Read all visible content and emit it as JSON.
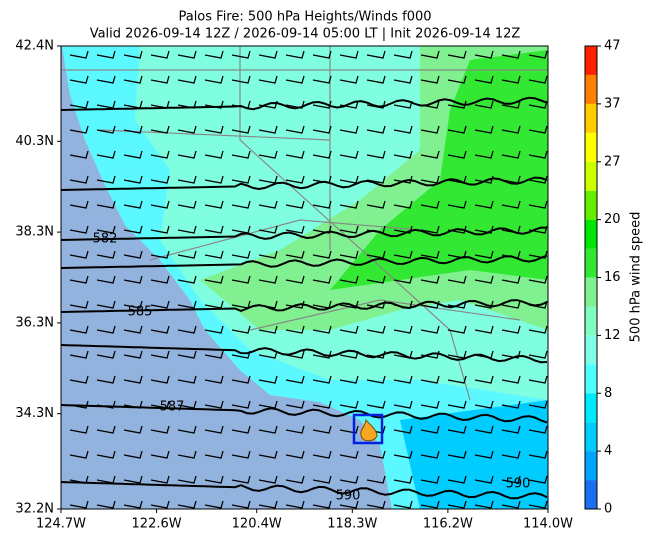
{
  "chart_data": {
    "type": "map",
    "title": "Palos Fire: 500 hPa Heights/Winds f000",
    "subtitle": "Valid 2026-09-14 12Z / 2026-09-14 05:00 LT | Init 2026-09-14 12Z",
    "xlim": [
      -124.7,
      -114.0
    ],
    "xticks": [
      {
        "value": -124.7,
        "label": "124.7W"
      },
      {
        "value": -122.6,
        "label": "122.6W"
      },
      {
        "value": -120.4,
        "label": "120.4W"
      },
      {
        "value": -118.3,
        "label": "118.3W"
      },
      {
        "value": -116.2,
        "label": "116.2W"
      },
      {
        "value": -114.0,
        "label": "114.0W"
      }
    ],
    "ylim": [
      32.2,
      42.4
    ],
    "yticks": [
      {
        "value": 32.2,
        "label": "32.2N"
      },
      {
        "value": 34.3,
        "label": "34.3N"
      },
      {
        "value": 36.3,
        "label": "36.3N"
      },
      {
        "value": 38.3,
        "label": "38.3N"
      },
      {
        "value": 40.3,
        "label": "40.3N"
      },
      {
        "value": 42.4,
        "label": "42.4N"
      }
    ],
    "contour_labels": [
      582,
      585,
      587,
      590,
      590
    ],
    "colorbar": {
      "label": "500 hPa wind speed",
      "levels": [
        0,
        2,
        4,
        6,
        8,
        10,
        12,
        14,
        16,
        18,
        20,
        23.5,
        27,
        32,
        37,
        42,
        47
      ],
      "colors": [
        "#1a6ef0",
        "#00a5ff",
        "#00ccff",
        "#00eaff",
        "#4dffff",
        "#80ffe8",
        "#80ffc0",
        "#80f090",
        "#33e833",
        "#00e600",
        "#66ee00",
        "#ccff00",
        "#ffff00",
        "#ffcc00",
        "#ff8000",
        "#ff2000"
      ],
      "ticks": [
        0,
        4,
        8,
        12,
        16,
        20,
        27,
        37,
        47
      ]
    }
  }
}
